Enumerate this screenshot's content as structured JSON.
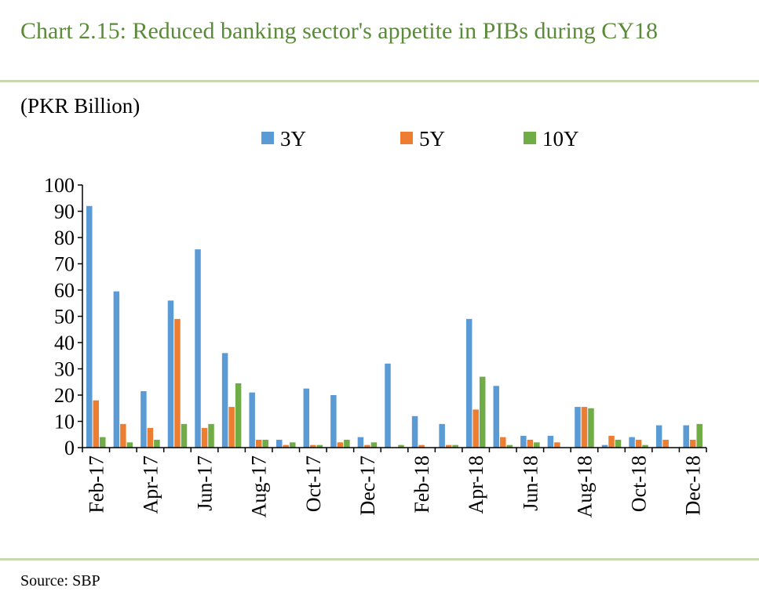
{
  "title": "Chart 2.15: Reduced banking sector's appetite in PIBs during CY18",
  "unit_label": "(PKR Billion)",
  "source": "Source:  SBP",
  "chart_data": {
    "type": "bar",
    "categories": [
      "Feb-17",
      "Mar-17",
      "Apr-17",
      "May-17",
      "Jun-17",
      "Jul-17",
      "Aug-17",
      "Sep-17",
      "Oct-17",
      "Nov-17",
      "Dec-17",
      "Jan-18",
      "Feb-18",
      "Mar-18",
      "Apr-18",
      "May-18",
      "Jun-18",
      "Jul-18",
      "Aug-18",
      "Sep-18",
      "Oct-18",
      "Nov-18",
      "Dec-18"
    ],
    "tick_labels_shown": [
      "Feb-17",
      "Apr-17",
      "Jun-17",
      "Aug-17",
      "Oct-17",
      "Dec-17",
      "Feb-18",
      "Apr-18",
      "Jun-18",
      "Aug-18",
      "Oct-18",
      "Dec-18"
    ],
    "series": [
      {
        "name": "3Y",
        "color": "#5b9bd5",
        "values": [
          92,
          59.5,
          21.5,
          56,
          75.5,
          36,
          21,
          3,
          22.5,
          20,
          4,
          32,
          12,
          9,
          49,
          23.5,
          4.5,
          4.5,
          15.5,
          1,
          4,
          8.5,
          8.5
        ]
      },
      {
        "name": "5Y",
        "color": "#ed7d31",
        "values": [
          18,
          9,
          7.5,
          49,
          7.5,
          15.5,
          3,
          1,
          1,
          2,
          1,
          0,
          1,
          1,
          14.5,
          4,
          3,
          2,
          15.5,
          4.5,
          3,
          3,
          3
        ]
      },
      {
        "name": "10Y",
        "color": "#70ad47",
        "values": [
          4,
          2,
          3,
          9,
          9,
          24.5,
          3,
          2,
          1,
          3,
          2,
          1,
          0,
          1,
          27,
          1,
          2,
          0,
          15,
          3,
          1,
          0,
          9
        ]
      }
    ],
    "ylim": [
      0,
      100
    ],
    "yticks": [
      0,
      10,
      20,
      30,
      40,
      50,
      60,
      70,
      80,
      90,
      100
    ],
    "legend_position": "top-center",
    "grid": false
  }
}
